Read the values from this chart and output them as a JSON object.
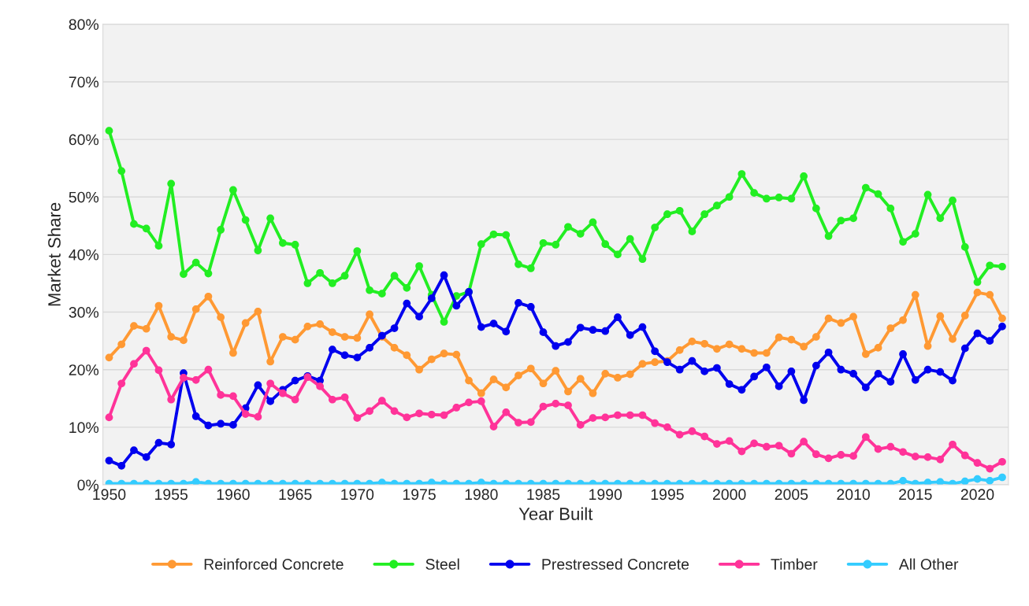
{
  "chart_data": {
    "type": "line",
    "xlabel": "Year Built",
    "ylabel": "Market Share",
    "x": [
      1950,
      1951,
      1952,
      1953,
      1954,
      1955,
      1956,
      1957,
      1958,
      1959,
      1960,
      1961,
      1962,
      1963,
      1964,
      1965,
      1966,
      1967,
      1968,
      1969,
      1970,
      1971,
      1972,
      1973,
      1974,
      1975,
      1976,
      1977,
      1978,
      1979,
      1980,
      1981,
      1982,
      1983,
      1984,
      1985,
      1986,
      1987,
      1988,
      1989,
      1990,
      1991,
      1992,
      1993,
      1994,
      1995,
      1996,
      1997,
      1998,
      1999,
      2000,
      2001,
      2002,
      2003,
      2004,
      2005,
      2006,
      2007,
      2008,
      2009,
      2010,
      2011,
      2012,
      2013,
      2014,
      2015,
      2016,
      2017,
      2018,
      2019,
      2020,
      2021,
      2022
    ],
    "series": [
      {
        "name": "Reinforced Concrete",
        "color": "#ff9933",
        "values": [
          22.1,
          24.4,
          27.6,
          27.1,
          31.1,
          25.7,
          25.1,
          30.5,
          32.7,
          29.1,
          22.9,
          28.1,
          30.1,
          21.4,
          25.7,
          25.2,
          27.5,
          27.9,
          26.5,
          25.7,
          25.5,
          29.6,
          25.7,
          23.8,
          22.5,
          20.0,
          21.8,
          22.8,
          22.6,
          18.1,
          15.9,
          18.3,
          16.9,
          19.0,
          20.2,
          17.6,
          19.8,
          16.2,
          18.4,
          15.9,
          19.3,
          18.6,
          19.2,
          21.0,
          21.3,
          21.5,
          23.4,
          24.9,
          24.5,
          23.6,
          24.4,
          23.6,
          22.9,
          22.9,
          25.6,
          25.2,
          24.0,
          25.7,
          28.9,
          28.1,
          29.2,
          22.7,
          23.8,
          27.2,
          28.6,
          33.0,
          24.1,
          29.3,
          25.3,
          29.4,
          33.4,
          33.0,
          28.9
        ]
      },
      {
        "name": "Steel",
        "color": "#22ee22",
        "values": [
          61.5,
          54.5,
          45.3,
          44.5,
          41.5,
          52.3,
          36.6,
          38.6,
          36.7,
          44.3,
          51.2,
          46.0,
          40.7,
          46.3,
          42.0,
          41.7,
          35.0,
          36.8,
          35.0,
          36.3,
          40.6,
          33.8,
          33.2,
          36.3,
          34.2,
          38.0,
          33.0,
          28.3,
          32.8,
          33.5,
          41.8,
          43.5,
          43.4,
          38.3,
          37.6,
          42.0,
          41.7,
          44.8,
          43.6,
          45.6,
          41.8,
          40.0,
          42.7,
          39.2,
          44.7,
          47.0,
          47.6,
          44.0,
          47.0,
          48.5,
          50.0,
          54.0,
          50.7,
          49.7,
          49.9,
          49.7,
          53.6,
          48.0,
          43.2,
          45.9,
          46.3,
          51.6,
          50.5,
          48.0,
          42.2,
          43.6,
          50.4,
          46.3,
          49.4,
          41.3,
          35.2,
          38.1,
          37.9
        ]
      },
      {
        "name": "Prestressed Concrete",
        "color": "#0000ee",
        "values": [
          4.2,
          3.3,
          6.0,
          4.8,
          7.3,
          7.0,
          19.4,
          11.9,
          10.3,
          10.6,
          10.4,
          13.3,
          17.3,
          14.5,
          16.5,
          18.1,
          18.9,
          18.1,
          23.5,
          22.5,
          22.1,
          23.8,
          25.9,
          27.2,
          31.5,
          29.2,
          32.4,
          36.4,
          31.1,
          33.5,
          27.4,
          28.0,
          26.6,
          31.6,
          30.9,
          26.5,
          24.1,
          24.8,
          27.3,
          26.9,
          26.7,
          29.1,
          26.0,
          27.4,
          23.2,
          21.3,
          20.0,
          21.5,
          19.7,
          20.3,
          17.5,
          16.5,
          18.8,
          20.4,
          17.1,
          19.7,
          14.7,
          20.7,
          23.0,
          20.0,
          19.3,
          16.9,
          19.3,
          17.9,
          22.7,
          18.2,
          20.0,
          19.6,
          18.1,
          23.7,
          26.3,
          25.0,
          27.5
        ]
      },
      {
        "name": "Timber",
        "color": "#ff3399",
        "values": [
          11.7,
          17.6,
          21.0,
          23.3,
          19.9,
          14.8,
          18.6,
          18.2,
          20.0,
          15.6,
          15.4,
          12.3,
          11.8,
          17.6,
          15.9,
          14.8,
          18.7,
          17.1,
          14.8,
          15.2,
          11.6,
          12.8,
          14.6,
          12.8,
          11.7,
          12.4,
          12.2,
          12.1,
          13.4,
          14.3,
          14.5,
          10.1,
          12.6,
          10.8,
          10.9,
          13.6,
          14.1,
          13.8,
          10.4,
          11.6,
          11.7,
          12.1,
          12.1,
          12.1,
          10.7,
          10.0,
          8.7,
          9.3,
          8.4,
          7.1,
          7.6,
          5.8,
          7.2,
          6.6,
          6.8,
          5.4,
          7.5,
          5.3,
          4.6,
          5.2,
          5.0,
          8.3,
          6.2,
          6.6,
          5.7,
          4.9,
          4.8,
          4.4,
          7.0,
          5.1,
          3.8,
          2.8,
          4.0
        ]
      },
      {
        "name": "All Other",
        "color": "#33ccff",
        "values": [
          0.2,
          0.2,
          0.2,
          0.2,
          0.2,
          0.2,
          0.2,
          0.5,
          0.2,
          0.2,
          0.2,
          0.2,
          0.2,
          0.2,
          0.2,
          0.2,
          0.2,
          0.2,
          0.2,
          0.2,
          0.2,
          0.2,
          0.4,
          0.2,
          0.2,
          0.2,
          0.4,
          0.2,
          0.2,
          0.2,
          0.4,
          0.2,
          0.2,
          0.2,
          0.2,
          0.2,
          0.2,
          0.2,
          0.2,
          0.2,
          0.2,
          0.2,
          0.2,
          0.2,
          0.2,
          0.2,
          0.2,
          0.2,
          0.2,
          0.2,
          0.2,
          0.2,
          0.2,
          0.2,
          0.2,
          0.2,
          0.2,
          0.2,
          0.2,
          0.2,
          0.2,
          0.2,
          0.2,
          0.2,
          0.7,
          0.2,
          0.4,
          0.5,
          0.2,
          0.6,
          1.0,
          0.7,
          1.3
        ]
      }
    ],
    "xlim": [
      1949.5,
      2022.5
    ],
    "xticks": [
      1950,
      1955,
      1960,
      1965,
      1970,
      1975,
      1980,
      1985,
      1990,
      1995,
      2000,
      2005,
      2010,
      2015,
      2020
    ],
    "ylim": [
      0,
      80
    ],
    "yticks": [
      {
        "value": 0,
        "label": "0%"
      },
      {
        "value": 10,
        "label": "10%"
      },
      {
        "value": 20,
        "label": "20%"
      },
      {
        "value": 30,
        "label": "30%"
      },
      {
        "value": 40,
        "label": "40%"
      },
      {
        "value": 50,
        "label": "50%"
      },
      {
        "value": 60,
        "label": "60%"
      },
      {
        "value": 70,
        "label": "70%"
      },
      {
        "value": 80,
        "label": "80%"
      }
    ],
    "grid": "y",
    "legend": "bottom",
    "marker": "circle",
    "line_style": "solid"
  }
}
